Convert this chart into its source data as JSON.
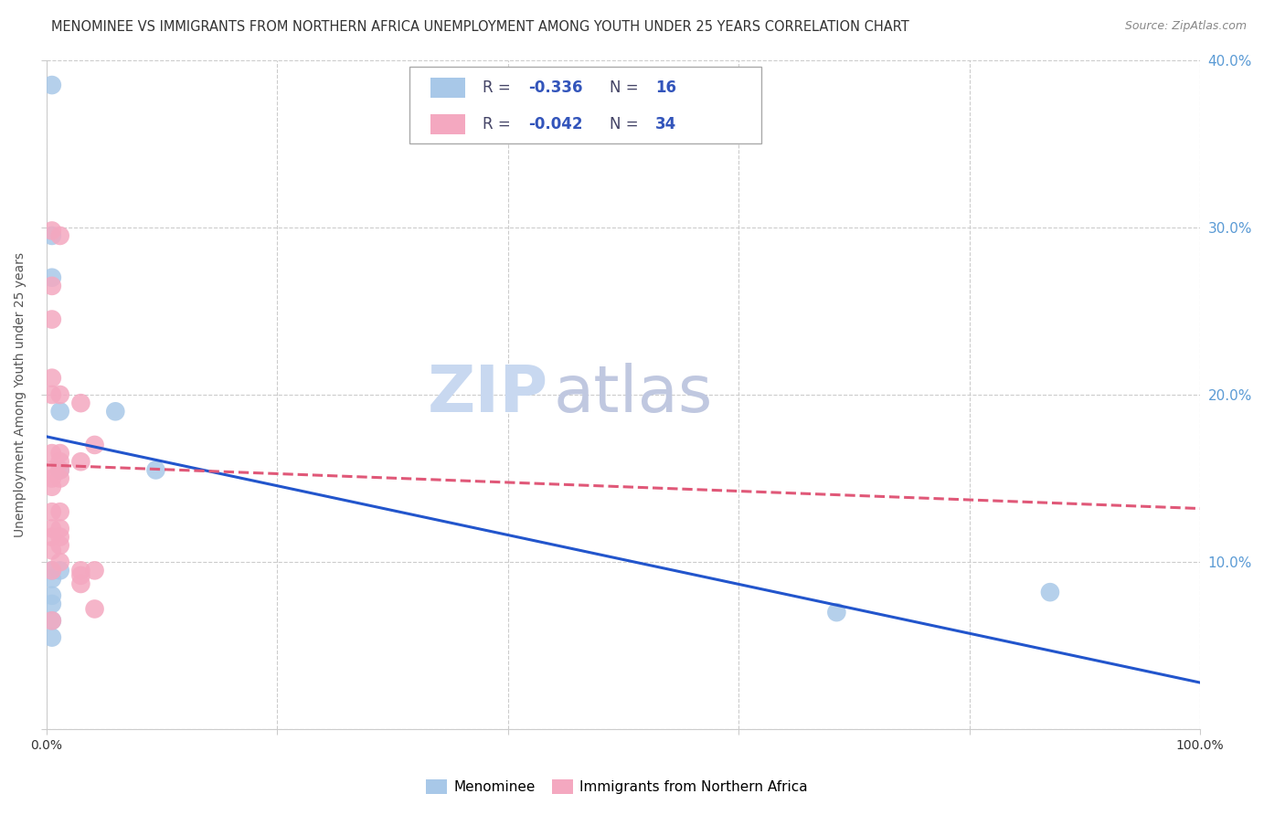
{
  "title": "MENOMINEE VS IMMIGRANTS FROM NORTHERN AFRICA UNEMPLOYMENT AMONG YOUTH UNDER 25 YEARS CORRELATION CHART",
  "source": "Source: ZipAtlas.com",
  "ylabel": "Unemployment Among Youth under 25 years",
  "xlim": [
    0,
    1.0
  ],
  "ylim": [
    0,
    0.4
  ],
  "watermark_zip": "ZIP",
  "watermark_atlas": "atlas",
  "series": [
    {
      "name": "Menominee",
      "R": -0.336,
      "N": 16,
      "color": "#a8c8e8",
      "trend_color": "#2255cc",
      "trend_style": "solid",
      "trend_x0": 0.0,
      "trend_y0": 0.175,
      "trend_x1": 1.0,
      "trend_y1": 0.028,
      "x": [
        0.005,
        0.005,
        0.005,
        0.005,
        0.005,
        0.005,
        0.005,
        0.005,
        0.005,
        0.012,
        0.012,
        0.012,
        0.06,
        0.095,
        0.685,
        0.87
      ],
      "y": [
        0.385,
        0.295,
        0.27,
        0.095,
        0.09,
        0.08,
        0.075,
        0.065,
        0.055,
        0.19,
        0.155,
        0.095,
        0.19,
        0.155,
        0.07,
        0.082
      ]
    },
    {
      "name": "Immigrants from Northern Africa",
      "R": -0.042,
      "N": 34,
      "color": "#f4a8c0",
      "trend_color": "#e05878",
      "trend_style": "dashed",
      "trend_x0": 0.0,
      "trend_y0": 0.158,
      "trend_x1": 1.0,
      "trend_y1": 0.132,
      "x": [
        0.005,
        0.005,
        0.005,
        0.005,
        0.005,
        0.005,
        0.005,
        0.005,
        0.005,
        0.005,
        0.005,
        0.005,
        0.005,
        0.005,
        0.005,
        0.012,
        0.012,
        0.012,
        0.012,
        0.012,
        0.012,
        0.012,
        0.012,
        0.012,
        0.012,
        0.012,
        0.03,
        0.03,
        0.03,
        0.03,
        0.03,
        0.042,
        0.042,
        0.042
      ],
      "y": [
        0.298,
        0.265,
        0.245,
        0.21,
        0.2,
        0.165,
        0.155,
        0.15,
        0.145,
        0.13,
        0.12,
        0.115,
        0.107,
        0.095,
        0.065,
        0.295,
        0.2,
        0.165,
        0.16,
        0.155,
        0.15,
        0.13,
        0.12,
        0.115,
        0.11,
        0.1,
        0.195,
        0.16,
        0.095,
        0.092,
        0.087,
        0.17,
        0.095,
        0.072
      ]
    }
  ],
  "title_fontsize": 10.5,
  "source_fontsize": 9,
  "axis_label_fontsize": 10,
  "tick_fontsize": 10,
  "legend_fontsize": 12,
  "watermark_fontsize_zip": 52,
  "watermark_fontsize_atlas": 52,
  "watermark_color_zip": "#c8d8f0",
  "watermark_color_atlas": "#c0c8e0",
  "background_color": "#ffffff",
  "grid_color": "#cccccc",
  "right_tick_color": "#5b9bd5",
  "legend_text_color": "#333333",
  "legend_r_color": "#cc2222",
  "legend_n_color": "#3366cc"
}
